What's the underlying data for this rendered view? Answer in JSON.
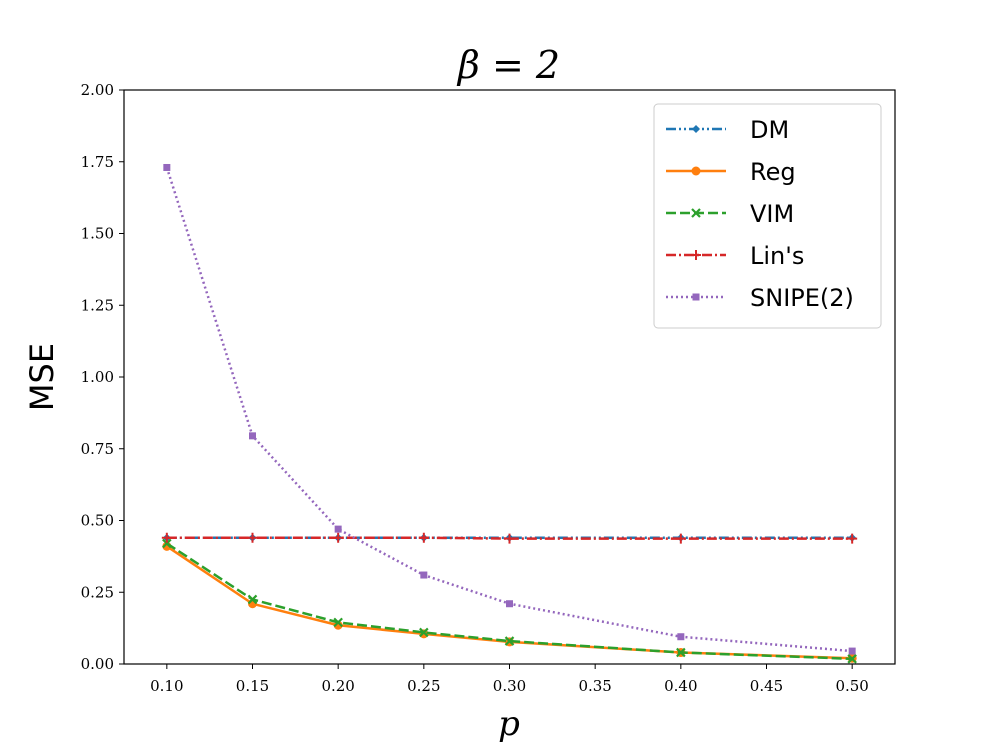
{
  "chart_data": {
    "type": "line",
    "title": "β = 2",
    "xlabel": "p",
    "ylabel": "MSE",
    "xlim": [
      0.075,
      0.525
    ],
    "ylim": [
      0.0,
      2.0
    ],
    "xticks": [
      "0.10",
      "0.15",
      "0.20",
      "0.25",
      "0.30",
      "0.35",
      "0.40",
      "0.45",
      "0.50"
    ],
    "yticks": [
      "0.00",
      "0.25",
      "0.50",
      "0.75",
      "1.00",
      "1.25",
      "1.50",
      "1.75",
      "2.00"
    ],
    "x": [
      0.1,
      0.15,
      0.2,
      0.25,
      0.3,
      0.4,
      0.5
    ],
    "legend_position": "upper right",
    "grid": false,
    "series": [
      {
        "name": "DM",
        "color": "#1f77b4",
        "dash": "dashdotdot",
        "marker": "diamond",
        "values": [
          0.44,
          0.44,
          0.44,
          0.44,
          0.44,
          0.44,
          0.44
        ]
      },
      {
        "name": "Reg",
        "color": "#ff7f0e",
        "dash": "solid",
        "marker": "circle",
        "values": [
          0.41,
          0.21,
          0.135,
          0.105,
          0.077,
          0.04,
          0.02
        ]
      },
      {
        "name": "VIM",
        "color": "#2ca02c",
        "dash": "dashed",
        "marker": "x",
        "values": [
          0.42,
          0.225,
          0.145,
          0.11,
          0.08,
          0.04,
          0.018
        ]
      },
      {
        "name": "Lin's",
        "color": "#d62728",
        "dash": "dashdot",
        "marker": "plus",
        "values": [
          0.44,
          0.44,
          0.44,
          0.44,
          0.437,
          0.437,
          0.437
        ]
      },
      {
        "name": "SNIPE(2)",
        "color": "#9467bd",
        "dash": "dotted",
        "marker": "square",
        "values": [
          1.73,
          0.795,
          0.47,
          0.31,
          0.21,
          0.095,
          0.045
        ]
      }
    ]
  }
}
